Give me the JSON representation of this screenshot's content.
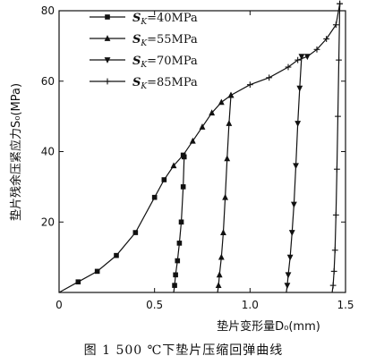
{
  "caption": "图 1   500 ℃下垫片压缩回弹曲线",
  "chart_data": {
    "type": "line",
    "xlabel": "垫片变形量D₀(mm)",
    "ylabel": "垫片残余压紧应力S₀(MPa)",
    "xlim": [
      0,
      1.5
    ],
    "ylim": [
      0,
      80
    ],
    "xticks": [
      0,
      0.5,
      1.0,
      1.5
    ],
    "xtick_labels": [
      "0",
      "0.5",
      "1.0",
      "1.5"
    ],
    "yticks": [
      20,
      40,
      60,
      80
    ],
    "ytick_labels": [
      "20",
      "40",
      "60",
      "80"
    ],
    "grid": false,
    "legend_position": "top-left",
    "loading_curve": {
      "x": [
        0,
        0.1,
        0.2,
        0.3,
        0.4,
        0.5,
        0.55,
        0.6,
        0.65,
        0.7,
        0.75,
        0.8,
        0.85,
        0.9,
        1.0,
        1.1,
        1.2,
        1.25,
        1.3,
        1.35,
        1.4,
        1.45,
        1.47
      ],
      "y": [
        0,
        3,
        6,
        10.5,
        17,
        27,
        32,
        36,
        39,
        43,
        47,
        51,
        54,
        56,
        59,
        61,
        64,
        66,
        67,
        69,
        72,
        76,
        82
      ]
    },
    "series": [
      {
        "name": "S_K=40MPa",
        "marker": "square",
        "x": [
          0.6,
          0.605,
          0.61,
          0.62,
          0.63,
          0.64,
          0.65,
          0.655
        ],
        "y": [
          0,
          2,
          5,
          9,
          14,
          20,
          30,
          38.5
        ]
      },
      {
        "name": "S_K=55MPa",
        "marker": "triangle-up",
        "x": [
          0.83,
          0.835,
          0.84,
          0.85,
          0.86,
          0.87,
          0.88,
          0.89,
          0.9
        ],
        "y": [
          0,
          2,
          5,
          10,
          17,
          27,
          38,
          48,
          56
        ]
      },
      {
        "name": "S_K=70MPa",
        "marker": "triangle-down",
        "x": [
          1.19,
          1.195,
          1.2,
          1.21,
          1.22,
          1.23,
          1.24,
          1.25,
          1.26,
          1.27
        ],
        "y": [
          0,
          2,
          5,
          10,
          17,
          25,
          36,
          48,
          58,
          67
        ]
      },
      {
        "name": "S_K=85MPa",
        "marker": "plus",
        "x": [
          1.43,
          1.435,
          1.44,
          1.445,
          1.45,
          1.455,
          1.46,
          1.465,
          1.47
        ],
        "y": [
          0,
          2,
          6,
          12,
          22,
          35,
          50,
          66,
          82
        ]
      }
    ],
    "legend": [
      {
        "sym": "S",
        "sub": "K",
        "value": "=40MPa"
      },
      {
        "sym": "S",
        "sub": "K",
        "value": "=55MPa"
      },
      {
        "sym": "S",
        "sub": "K",
        "value": "=70MPa"
      },
      {
        "sym": "S",
        "sub": "K",
        "value": "=85MPa"
      }
    ]
  }
}
